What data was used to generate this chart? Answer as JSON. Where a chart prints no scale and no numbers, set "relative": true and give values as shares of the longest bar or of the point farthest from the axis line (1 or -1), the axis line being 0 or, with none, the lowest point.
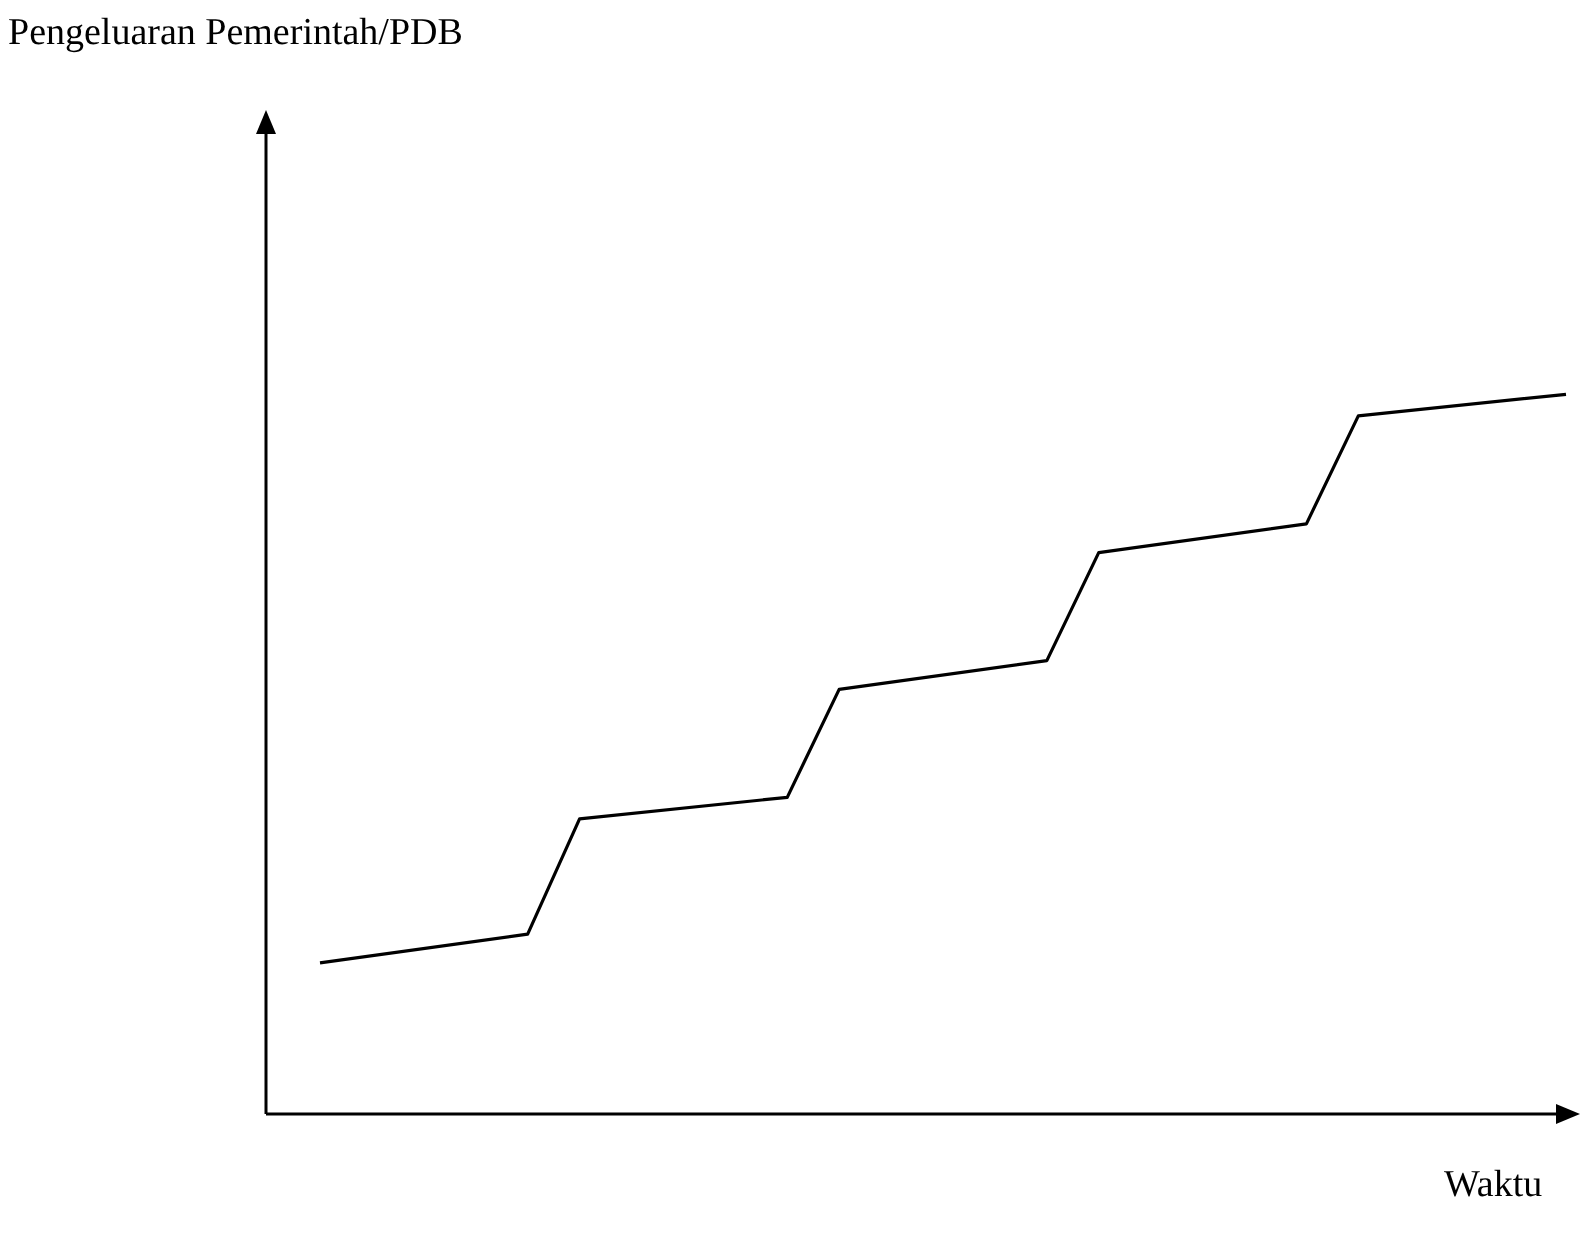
{
  "chart_data": {
    "type": "line",
    "relative": true,
    "annotations": [
      "Pengeluaran Pemerintah/PDB"
    ],
    "xlabel": "Waktu",
    "line_style": "solid",
    "categories": [
      null,
      null,
      null,
      null,
      null,
      null,
      null,
      null,
      null,
      null,
      null,
      null,
      null,
      null,
      null,
      null,
      null,
      null,
      null,
      null,
      null,
      null,
      null,
      null,
      null
    ],
    "series": [
      {
        "color": "#000000",
        "values": [
          0.21,
          null,
          null,
          null,
          0.25,
          0.41,
          null,
          null,
          null,
          0.44,
          0.59,
          null,
          null,
          null,
          0.63,
          0.78,
          null,
          null,
          null,
          0.82,
          0.97,
          null,
          null,
          null,
          1
        ]
      }
    ]
  }
}
